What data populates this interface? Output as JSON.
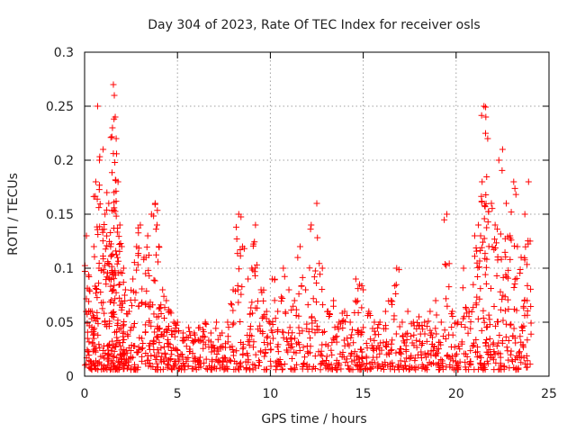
{
  "chart_data": {
    "type": "scatter",
    "title": "Day 304 of 2023, Rate Of TEC Index for receiver osls",
    "xlabel": "GPS time / hours",
    "ylabel": "ROTI / TECUs",
    "xlim": [
      0,
      25
    ],
    "ylim": [
      0,
      0.3
    ],
    "x_ticks": [
      0,
      5,
      10,
      15,
      20,
      25
    ],
    "x_tick_labels": [
      "0",
      "5",
      "10",
      "15",
      "20",
      "25"
    ],
    "y_ticks": [
      0,
      0.05,
      0.1,
      0.15,
      0.2,
      0.25,
      0.3
    ],
    "y_tick_labels": [
      "0",
      "0.05",
      "0.1",
      "0.15",
      "0.2",
      "0.25",
      "0.3"
    ],
    "grid": true,
    "marker": "+",
    "marker_color": "#ff0000",
    "series": [
      {
        "x": [
          0.1,
          0.25,
          0.4,
          0.5,
          0.6,
          0.7,
          0.8,
          1.0,
          1.1,
          1.2,
          1.3,
          1.4,
          1.5,
          1.55,
          1.6,
          1.65,
          1.7,
          1.8,
          1.9,
          2.0,
          2.1,
          2.2,
          2.4,
          2.6,
          2.8,
          3.0,
          3.2,
          3.4,
          3.6,
          3.8,
          3.9,
          4.0,
          4.2,
          4.4,
          4.6,
          4.8,
          5.0,
          5.3,
          5.6,
          5.9,
          6.2,
          6.5,
          6.8,
          7.1,
          7.4,
          7.7,
          8.0,
          8.3,
          8.5,
          8.8,
          9.0,
          9.2,
          9.5,
          9.8,
          10.1,
          10.4,
          10.7,
          11.0,
          11.3,
          11.6,
          11.9,
          12.2,
          12.5,
          12.8,
          13.1,
          13.4,
          13.7,
          14.0,
          14.3,
          14.6,
          14.8,
          15.0,
          15.3,
          15.6,
          15.9,
          16.2,
          16.5,
          16.8,
          17.1,
          17.4,
          17.7,
          18.0,
          18.3,
          18.6,
          18.9,
          19.2,
          19.5,
          19.8,
          20.1,
          20.4,
          20.7,
          21.0,
          21.2,
          21.4,
          21.5,
          21.6,
          21.7,
          21.9,
          22.1,
          22.3,
          22.5,
          22.7,
          22.9,
          23.1,
          23.3,
          23.5,
          23.7,
          23.9
        ],
        "y": [
          0.13,
          0.08,
          0.06,
          0.12,
          0.18,
          0.25,
          0.2,
          0.21,
          0.15,
          0.17,
          0.16,
          0.12,
          0.23,
          0.27,
          0.26,
          0.24,
          0.22,
          0.18,
          0.14,
          0.12,
          0.1,
          0.08,
          0.06,
          0.09,
          0.12,
          0.14,
          0.11,
          0.13,
          0.15,
          0.16,
          0.14,
          0.12,
          0.08,
          0.07,
          0.06,
          0.05,
          0.05,
          0.04,
          0.045,
          0.04,
          0.045,
          0.05,
          0.04,
          0.05,
          0.04,
          0.05,
          0.08,
          0.15,
          0.12,
          0.09,
          0.1,
          0.14,
          0.08,
          0.06,
          0.09,
          0.06,
          0.1,
          0.08,
          0.07,
          0.12,
          0.08,
          0.14,
          0.16,
          0.1,
          0.06,
          0.07,
          0.05,
          0.06,
          0.05,
          0.09,
          0.085,
          0.08,
          0.06,
          0.05,
          0.05,
          0.06,
          0.07,
          0.1,
          0.05,
          0.06,
          0.05,
          0.055,
          0.05,
          0.06,
          0.07,
          0.05,
          0.15,
          0.06,
          0.05,
          0.1,
          0.06,
          0.13,
          0.14,
          0.18,
          0.25,
          0.24,
          0.22,
          0.16,
          0.14,
          0.2,
          0.21,
          0.16,
          0.13,
          0.18,
          0.12,
          0.11,
          0.15,
          0.18
        ]
      }
    ]
  }
}
